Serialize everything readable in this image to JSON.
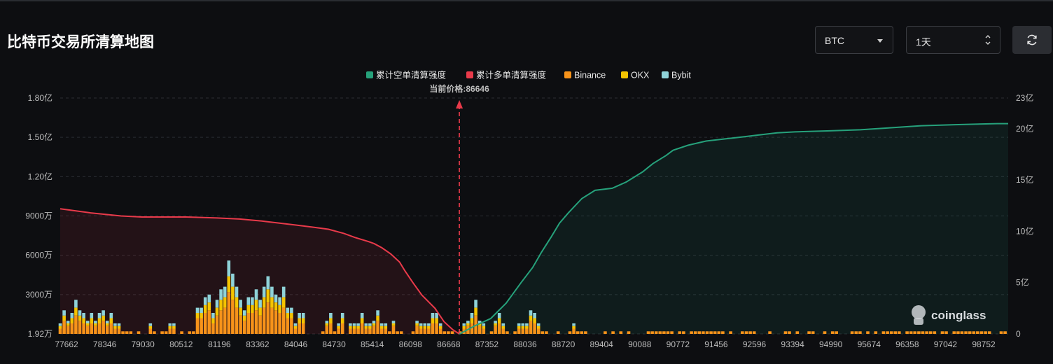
{
  "header": {
    "title": "比特币交易所清算地图",
    "coin_select": "BTC",
    "range_select": "1天"
  },
  "watermark": "coinglass",
  "chart_data": {
    "type": "bar",
    "stacked": true,
    "legend": [
      "累计空单清算强度",
      "累计多单清算强度",
      "Binance",
      "OKX",
      "Bybit"
    ],
    "legend_colors": [
      "#26a17b",
      "#e83a4a",
      "#f7931a",
      "#f5c400",
      "#8fd3d9"
    ],
    "current_price": 86646,
    "current_price_label": "当前价格:86646",
    "x_tick_labels": [
      "77662",
      "78346",
      "79030",
      "80512",
      "81196",
      "83362",
      "84046",
      "84730",
      "85414",
      "86098",
      "86668",
      "87352",
      "88036",
      "88720",
      "89404",
      "90088",
      "90772",
      "91456",
      "92596",
      "93394",
      "94990",
      "95674",
      "96358",
      "97042",
      "98752"
    ],
    "x_range": [
      77662,
      99000
    ],
    "left_axis": {
      "ticks": [
        "1.92万",
        "3000万",
        "6000万",
        "9000万",
        "1.20亿",
        "1.50亿",
        "1.80亿"
      ],
      "ylim": [
        0,
        180000000
      ]
    },
    "right_axis": {
      "ticks": [
        "0",
        "5亿",
        "10亿",
        "15亿",
        "20亿",
        "23亿"
      ],
      "ylim": [
        0,
        2300000000
      ]
    },
    "grid": true,
    "bars": {
      "x": [
        77662,
        77750,
        77838,
        77927,
        78015,
        78103,
        78191,
        78280,
        78368,
        78456,
        78544,
        78633,
        78721,
        78809,
        78897,
        78986,
        79074,
        79162,
        79250,
        79339,
        79427,
        79515,
        79603,
        79692,
        79780,
        79868,
        79956,
        80045,
        80133,
        80221,
        80309,
        80398,
        80486,
        80574,
        80662,
        80751,
        80839,
        80927,
        81015,
        81104,
        81192,
        81280,
        81368,
        81457,
        81545,
        81633,
        81721,
        81810,
        81898,
        81986,
        82074,
        82163,
        82251,
        82339,
        82427,
        82516,
        82604,
        82692,
        82780,
        82869,
        82957,
        83045,
        83133,
        83222,
        83310,
        83398,
        83486,
        83575,
        83663,
        83751,
        83839,
        83928,
        84016,
        84104,
        84192,
        84281,
        84369,
        84457,
        84545,
        84634,
        84722,
        84810,
        84898,
        84987,
        85075,
        85163,
        85251,
        85340,
        85428,
        85516,
        85604,
        85693,
        85781,
        85869,
        85957,
        86046,
        86134,
        86222,
        86310,
        86399,
        86487,
        86575,
        86663,
        86752,
        86840,
        86928,
        87016,
        87105,
        87193,
        87281,
        87369,
        87458,
        87546,
        87634,
        87722,
        87811,
        87899,
        87987,
        88075,
        88164,
        88252,
        88340,
        88428,
        88517,
        88605,
        88693,
        88781,
        88870,
        88958,
        89046,
        89134,
        89223,
        89311,
        89399,
        89487,
        89576,
        89664,
        89752,
        89840,
        89929,
        90017,
        90105,
        90193,
        90282,
        90370,
        90458,
        90546,
        90635,
        90723,
        90811,
        90899,
        90988,
        91076,
        91164,
        91252,
        91341,
        91429,
        91517,
        91605,
        91694,
        91782,
        91870,
        91958,
        92047,
        92135,
        92223,
        92311,
        92400,
        92488,
        92576,
        92664,
        92753,
        92841,
        92929,
        93017,
        93106,
        93194,
        93282,
        93370,
        93459,
        93547,
        93635,
        93723,
        93812,
        93900,
        93988,
        94076,
        94165,
        94253,
        94341,
        94429,
        94518,
        94606,
        94694,
        94782,
        94871,
        94959,
        95047,
        95135,
        95224,
        95312,
        95400,
        95488,
        95577,
        95665,
        95753,
        95841,
        95930,
        96018,
        96106,
        96194,
        96283,
        96371,
        96459,
        96547,
        96636,
        96724,
        96812,
        96900,
        96989,
        97077,
        97165,
        97253,
        97342,
        97430,
        97518,
        97606,
        97695,
        97783,
        97871,
        97959,
        98048,
        98136,
        98224,
        98312,
        98401,
        98489,
        98577,
        98665,
        98754,
        98842,
        98930
      ],
      "binance": [
        2,
        5,
        3,
        4,
        7,
        5,
        4,
        3,
        4,
        3,
        4,
        5,
        3,
        4,
        2,
        2,
        1,
        1,
        1,
        0,
        1,
        0,
        0,
        2,
        1,
        0,
        1,
        1,
        2,
        2,
        0,
        1,
        0,
        1,
        1,
        6,
        6,
        8,
        9,
        4,
        7,
        9,
        10,
        16,
        13,
        10,
        7,
        5,
        8,
        8,
        9,
        7,
        10,
        12,
        10,
        9,
        8,
        10,
        6,
        6,
        2,
        4,
        4,
        0,
        0,
        0,
        0,
        1,
        3,
        4,
        1,
        2,
        4,
        0,
        2,
        2,
        2,
        4,
        2,
        2,
        3,
        5,
        2,
        2,
        1,
        3,
        1,
        1,
        0,
        0,
        1,
        3,
        2,
        2,
        2,
        4,
        4,
        2,
        1,
        1,
        1,
        0,
        1,
        2,
        3,
        4,
        7,
        3,
        2,
        0,
        1,
        3,
        4,
        2,
        1,
        0,
        1,
        2,
        2,
        2,
        5,
        4,
        2,
        1,
        1,
        0,
        0,
        1,
        0,
        0,
        1,
        2,
        1,
        1,
        1,
        0,
        0,
        0,
        0,
        1,
        0,
        1,
        0,
        1,
        0,
        1,
        0,
        0,
        0,
        0,
        1,
        1,
        1,
        1,
        1,
        1,
        1,
        0,
        1,
        1,
        0,
        1,
        1,
        1,
        1,
        1,
        1,
        1,
        1,
        1,
        0,
        1,
        0,
        0,
        1,
        1,
        1,
        1,
        0,
        0,
        0,
        1,
        0,
        0,
        0,
        1,
        1,
        0,
        1,
        0,
        0,
        1,
        1,
        0,
        0,
        1,
        0,
        1,
        1,
        0,
        0,
        0,
        1,
        1,
        1,
        0,
        1,
        0,
        1,
        0,
        1,
        1,
        1,
        1,
        1,
        0,
        1,
        1,
        1,
        1,
        1,
        1,
        1,
        1,
        0,
        1,
        1,
        0,
        1,
        1,
        1,
        1,
        1,
        1,
        1,
        1,
        1,
        1,
        0,
        0,
        1,
        1,
        1,
        1,
        1,
        1,
        1,
        1,
        1,
        1,
        1,
        1,
        0,
        0,
        1,
        1,
        1
      ],
      "okx": [
        1,
        2,
        1,
        2,
        3,
        2,
        2,
        1,
        2,
        1,
        2,
        2,
        1,
        2,
        1,
        1,
        0,
        0,
        0,
        0,
        0,
        0,
        0,
        1,
        0,
        0,
        0,
        0,
        1,
        1,
        0,
        0,
        0,
        0,
        0,
        2,
        2,
        3,
        3,
        2,
        3,
        4,
        4,
        6,
        5,
        4,
        3,
        2,
        3,
        3,
        4,
        3,
        4,
        5,
        4,
        3,
        3,
        4,
        2,
        2,
        1,
        2,
        2,
        0,
        0,
        0,
        0,
        0,
        1,
        2,
        0,
        1,
        2,
        0,
        1,
        1,
        1,
        2,
        1,
        1,
        1,
        2,
        1,
        1,
        0,
        1,
        0,
        0,
        0,
        0,
        0,
        1,
        1,
        1,
        1,
        2,
        2,
        1,
        0,
        0,
        0,
        0,
        0,
        1,
        1,
        2,
        3,
        1,
        1,
        0,
        0,
        1,
        2,
        1,
        0,
        0,
        0,
        1,
        1,
        1,
        2,
        2,
        1,
        0,
        0,
        0,
        0,
        0,
        0,
        0,
        0,
        1,
        0,
        0,
        0,
        0,
        0,
        0,
        0,
        0,
        0,
        0,
        0,
        0,
        0,
        0,
        0,
        0,
        0,
        0,
        0,
        0,
        0,
        0,
        0,
        0,
        0,
        0,
        0,
        0,
        0,
        0,
        0,
        0,
        0,
        0,
        0,
        0,
        0,
        0,
        0,
        0,
        0,
        0,
        0,
        0,
        0,
        0,
        0,
        0,
        0,
        0,
        0,
        0,
        0,
        0,
        0,
        0,
        0,
        0,
        0,
        0,
        0,
        0,
        0,
        0,
        0,
        0,
        0,
        0,
        0,
        0,
        0,
        0,
        0,
        0,
        0,
        0,
        0,
        0,
        0,
        0,
        0,
        0,
        0,
        0,
        0,
        0,
        0,
        0,
        0,
        0,
        0,
        0,
        0,
        0,
        0,
        0,
        0,
        0,
        0,
        0,
        0,
        0,
        0,
        0,
        0,
        0,
        0,
        0,
        0,
        0,
        0,
        0,
        0,
        0,
        0,
        0,
        0,
        0,
        0,
        0,
        0,
        0,
        0,
        0,
        0,
        0
      ],
      "bybit": [
        1,
        2,
        1,
        2,
        3,
        2,
        2,
        1,
        2,
        1,
        2,
        2,
        1,
        2,
        1,
        1,
        0,
        0,
        0,
        0,
        0,
        0,
        0,
        1,
        0,
        0,
        0,
        0,
        1,
        1,
        0,
        0,
        0,
        0,
        0,
        2,
        2,
        3,
        3,
        2,
        3,
        4,
        4,
        6,
        5,
        4,
        3,
        2,
        3,
        3,
        4,
        3,
        4,
        5,
        4,
        3,
        3,
        4,
        2,
        2,
        1,
        2,
        2,
        0,
        0,
        0,
        0,
        0,
        1,
        2,
        0,
        1,
        2,
        0,
        1,
        1,
        1,
        2,
        1,
        1,
        1,
        2,
        1,
        1,
        0,
        1,
        0,
        0,
        0,
        0,
        0,
        1,
        1,
        1,
        1,
        2,
        2,
        1,
        0,
        0,
        0,
        0,
        0,
        1,
        1,
        2,
        3,
        1,
        1,
        0,
        0,
        1,
        2,
        1,
        0,
        0,
        0,
        1,
        1,
        1,
        2,
        2,
        1,
        0,
        0,
        0,
        0,
        0,
        0,
        0,
        0,
        1,
        0,
        0,
        0,
        0,
        0,
        0,
        0,
        0,
        0,
        0,
        0,
        0,
        0,
        0,
        0,
        0,
        0,
        0,
        0,
        0,
        0,
        0,
        0,
        0,
        0,
        0,
        0,
        0,
        0,
        0,
        0,
        0,
        0,
        0,
        0,
        0,
        0,
        0,
        0,
        0,
        0,
        0,
        0,
        0,
        0,
        0,
        0,
        0,
        0,
        0,
        0,
        0,
        0,
        0,
        0,
        0,
        0,
        0,
        0,
        0,
        0,
        0,
        0,
        0,
        0,
        0,
        0,
        0,
        0,
        0,
        0,
        0,
        0,
        0,
        0,
        0,
        0,
        0,
        0,
        0,
        0,
        0,
        0,
        0,
        0,
        0,
        0,
        0,
        0,
        0,
        0,
        0,
        0,
        0,
        0,
        0,
        0,
        0,
        0,
        0,
        0,
        0,
        0,
        0,
        0,
        0,
        0,
        0,
        0,
        0,
        0,
        0,
        0,
        0,
        0,
        0,
        0,
        0,
        0,
        0,
        0,
        0,
        0,
        0,
        0,
        0
      ]
    },
    "long_cumulative": {
      "x": [
        77662,
        78346,
        79030,
        79500,
        80512,
        81196,
        81700,
        82200,
        82600,
        83000,
        83362,
        83700,
        84046,
        84300,
        84600,
        84730,
        84900,
        85100,
        85300,
        85414,
        85600,
        85800,
        86098,
        86300,
        86500,
        86646
      ],
      "y": [
        1220000000,
        1180000000,
        1150000000,
        1140000000,
        1140000000,
        1130000000,
        1120000000,
        1100000000,
        1080000000,
        1060000000,
        1040000000,
        1020000000,
        980000000,
        940000000,
        900000000,
        880000000,
        840000000,
        780000000,
        700000000,
        620000000,
        500000000,
        380000000,
        250000000,
        120000000,
        40000000,
        0
      ]
    },
    "short_cumulative": {
      "x": [
        86646,
        86700,
        87000,
        87352,
        87700,
        88036,
        88300,
        88500,
        88720,
        88900,
        89100,
        89404,
        89700,
        90088,
        90400,
        90772,
        91000,
        91300,
        91456,
        91800,
        92200,
        92596,
        93000,
        93394,
        93800,
        94200,
        94990,
        95674,
        96358,
        97042,
        97800,
        98752,
        99000
      ],
      "y": [
        0,
        10000000,
        80000000,
        150000000,
        300000000,
        500000000,
        650000000,
        800000000,
        950000000,
        1080000000,
        1180000000,
        1320000000,
        1400000000,
        1420000000,
        1480000000,
        1580000000,
        1660000000,
        1740000000,
        1790000000,
        1840000000,
        1880000000,
        1900000000,
        1920000000,
        1940000000,
        1960000000,
        1970000000,
        1980000000,
        1990000000,
        2010000000,
        2030000000,
        2040000000,
        2050000000,
        2050000000
      ]
    }
  }
}
